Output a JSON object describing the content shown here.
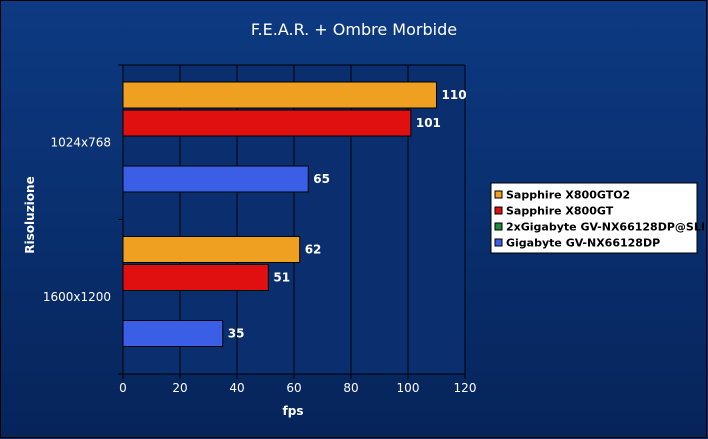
{
  "chart_data": {
    "type": "bar",
    "orientation": "horizontal",
    "title": "F.E.A.R. + Ombre Morbide",
    "xlabel": "fps",
    "ylabel": "Risoluzione",
    "categories": [
      "1024x768",
      "1600x1200"
    ],
    "xlim": [
      0,
      120
    ],
    "xticks": [
      0,
      20,
      40,
      60,
      80,
      100,
      120
    ],
    "grid": true,
    "legend_position": "right",
    "series": [
      {
        "name": "Sapphire X800GTO2",
        "color": "#f0a020",
        "values": [
          110,
          62
        ]
      },
      {
        "name": "Sapphire X800GT",
        "color": "#e01010",
        "values": [
          101,
          51
        ]
      },
      {
        "name": "2xGigabyte GV-NX66128DP@SLI",
        "color": "#1e8a3a",
        "values": [
          null,
          null
        ]
      },
      {
        "name": "Gigabyte GV-NX66128DP",
        "color": "#3a5ee6",
        "values": [
          65,
          35
        ]
      }
    ]
  },
  "colors": {
    "background_top": "#0d3a82",
    "background_bottom": "#06245a",
    "plot_area": "#0b2f6e",
    "gridline": "#000000",
    "text": "#ffffff",
    "legend_background": "#ffffff"
  }
}
